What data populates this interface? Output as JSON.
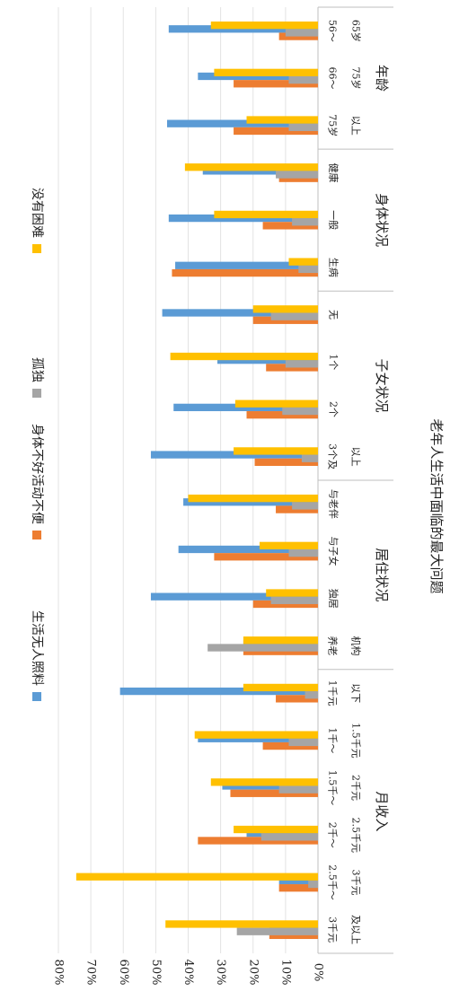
{
  "chart_data": {
    "type": "bar",
    "orientation": "horizontal-rotated",
    "title": "老年人生活中面临的最大问题",
    "y_ticks": [
      "0%",
      "10%",
      "20%",
      "30%",
      "40%",
      "50%",
      "60%",
      "70%",
      "80%"
    ],
    "ylim": [
      0,
      80
    ],
    "grid": true,
    "legend_position": "top",
    "colors": [
      "#5b9bd5",
      "#ed7d31",
      "#a5a5a5",
      "#ffc000"
    ],
    "series": [
      {
        "name": "生活无人照料",
        "values": [
          46,
          37,
          46.5,
          35.5,
          46,
          44,
          48,
          31,
          44.5,
          51.5,
          41.5,
          43,
          51.5,
          23,
          61,
          37,
          29.5,
          22,
          12,
          15
        ]
      },
      {
        "name": "身体不好活动不便",
        "values": [
          12,
          26,
          26,
          12,
          17,
          45,
          20,
          16,
          22,
          19.5,
          13,
          32,
          20,
          23,
          13,
          17,
          27,
          37,
          12,
          15
        ]
      },
      {
        "name": "孤独",
        "values": [
          10,
          9,
          9,
          13,
          8,
          6,
          14.5,
          10,
          11,
          5,
          8,
          9,
          14.5,
          34,
          4,
          9,
          12,
          17.5,
          3,
          25
        ]
      },
      {
        "name": "没有困难",
        "values": [
          33,
          32,
          22,
          41,
          32,
          9,
          20,
          45.5,
          25.5,
          26,
          40,
          18,
          16,
          23,
          23,
          38,
          33,
          26,
          74.5,
          47
        ]
      }
    ],
    "categories": [
      {
        "lines": [
          "56～",
          "65岁"
        ]
      },
      {
        "lines": [
          "66～",
          "75岁"
        ]
      },
      {
        "lines": [
          "75岁",
          "以上"
        ]
      },
      {
        "lines": [
          "健康"
        ]
      },
      {
        "lines": [
          "一般"
        ]
      },
      {
        "lines": [
          "生病"
        ]
      },
      {
        "lines": [
          "无"
        ]
      },
      {
        "lines": [
          "1个"
        ]
      },
      {
        "lines": [
          "2个"
        ]
      },
      {
        "lines": [
          "3个及",
          "以上"
        ]
      },
      {
        "lines": [
          "与老伴"
        ]
      },
      {
        "lines": [
          "与子女"
        ]
      },
      {
        "lines": [
          "独居"
        ]
      },
      {
        "lines": [
          "养老",
          "机构"
        ]
      },
      {
        "lines": [
          "1千元",
          "以下"
        ]
      },
      {
        "lines": [
          "1千～",
          "1.5千元"
        ]
      },
      {
        "lines": [
          "1.5千～",
          "2千元"
        ]
      },
      {
        "lines": [
          "2千～",
          "2.5千元"
        ]
      },
      {
        "lines": [
          "2.5千～",
          "3千元"
        ]
      },
      {
        "lines": [
          "3千元",
          "及以上"
        ]
      }
    ],
    "groups": [
      {
        "label": "年龄",
        "count": 3
      },
      {
        "label": "身体状况",
        "count": 3
      },
      {
        "label": "子女状况",
        "count": 4
      },
      {
        "label": "居住状况",
        "count": 4
      },
      {
        "label": "月收入",
        "count": 6
      }
    ]
  }
}
